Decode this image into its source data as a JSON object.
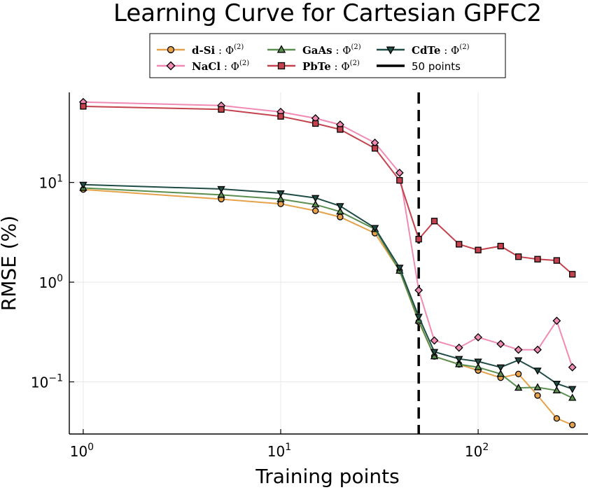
{
  "chart_data": {
    "type": "line",
    "title": "Learning Curve for Cartesian GPFC2",
    "xlabel": "Training points",
    "ylabel": "RMSE (%)",
    "xscale": "log",
    "yscale": "log",
    "xlim": [
      0.85,
      360
    ],
    "ylim": [
      0.03,
      80
    ],
    "grid": true,
    "legend_position": "top",
    "x_ticks": [
      {
        "value": 1,
        "base": "10",
        "exp": "0"
      },
      {
        "value": 10,
        "base": "10",
        "exp": "1"
      },
      {
        "value": 100,
        "base": "10",
        "exp": "2"
      }
    ],
    "y_ticks": [
      {
        "value": 0.1,
        "base": "10",
        "exp": "−1"
      },
      {
        "value": 1,
        "base": "10",
        "exp": "0"
      },
      {
        "value": 10,
        "base": "10",
        "exp": "1"
      }
    ],
    "vline": {
      "x": 50,
      "label": "50 points",
      "color": "#000000"
    },
    "series": [
      {
        "name": "d-Si",
        "phi": "Φ",
        "phi_sup": "(2)",
        "color": "#e6a24a",
        "marker": "circle",
        "x": [
          1,
          5,
          10,
          15,
          20,
          30,
          40,
          50,
          60,
          80,
          100,
          130,
          160,
          200,
          250,
          300
        ],
        "y": [
          8.5,
          6.8,
          6.1,
          5.2,
          4.5,
          3.1,
          1.3,
          0.4,
          0.18,
          0.15,
          0.13,
          0.11,
          0.12,
          0.073,
          0.043,
          0.037
        ]
      },
      {
        "name": "NaCl",
        "phi": "Φ",
        "phi_sup": "(2)",
        "color": "#f18ab3",
        "marker": "diamond",
        "x": [
          1,
          5,
          10,
          15,
          20,
          30,
          40,
          50,
          60,
          80,
          100,
          130,
          160,
          200,
          250,
          300
        ],
        "y": [
          64,
          59,
          51,
          44,
          38,
          25,
          12.5,
          0.83,
          0.26,
          0.22,
          0.28,
          0.24,
          0.21,
          0.21,
          0.41,
          0.14
        ]
      },
      {
        "name": "GaAs",
        "phi": "Φ",
        "phi_sup": "(2)",
        "color": "#5a8f4f",
        "marker": "triangle-up",
        "x": [
          1,
          5,
          10,
          15,
          20,
          30,
          40,
          50,
          60,
          80,
          100,
          130,
          160,
          200,
          250,
          300
        ],
        "y": [
          8.8,
          7.5,
          6.8,
          6.0,
          5.1,
          3.4,
          1.3,
          0.41,
          0.18,
          0.15,
          0.14,
          0.12,
          0.087,
          0.088,
          0.082,
          0.069
        ]
      },
      {
        "name": "PbTe",
        "phi": "Φ",
        "phi_sup": "(2)",
        "color": "#c4424d",
        "marker": "square",
        "x": [
          1,
          5,
          10,
          15,
          20,
          30,
          40,
          50,
          60,
          80,
          100,
          130,
          160,
          200,
          250,
          300
        ],
        "y": [
          58,
          54,
          46,
          39,
          34,
          22,
          10.5,
          2.7,
          4.1,
          2.4,
          2.1,
          2.3,
          1.8,
          1.7,
          1.65,
          1.2
        ]
      },
      {
        "name": "CdTe",
        "phi": "Φ",
        "phi_sup": "(2)",
        "color": "#1f4d45",
        "marker": "triangle-down",
        "x": [
          1,
          5,
          10,
          15,
          20,
          30,
          40,
          50,
          60,
          80,
          100,
          130,
          160,
          200,
          250,
          300
        ],
        "y": [
          9.5,
          8.6,
          7.8,
          7.0,
          5.8,
          3.5,
          1.4,
          0.45,
          0.2,
          0.17,
          0.16,
          0.14,
          0.165,
          0.13,
          0.096,
          0.085
        ]
      }
    ]
  }
}
